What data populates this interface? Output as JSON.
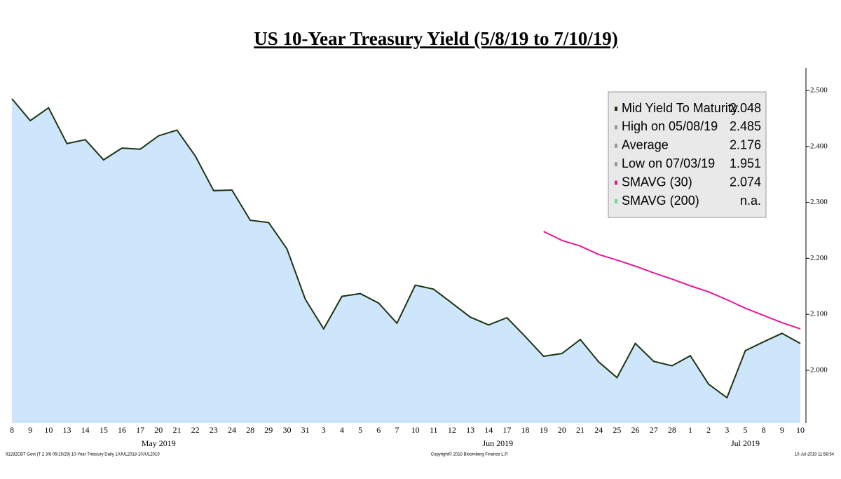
{
  "chart_data": {
    "type": "line",
    "title": "US 10-Year Treasury Yield (5/8/19 to 7/10/19)",
    "categories": [
      "8",
      "9",
      "10",
      "13",
      "14",
      "15",
      "16",
      "17",
      "20",
      "21",
      "22",
      "23",
      "24",
      "28",
      "29",
      "30",
      "31",
      "3",
      "4",
      "5",
      "6",
      "7",
      "10",
      "11",
      "12",
      "13",
      "14",
      "17",
      "18",
      "19",
      "20",
      "21",
      "24",
      "25",
      "26",
      "27",
      "28",
      "1",
      "2",
      "3",
      "5",
      "8",
      "9",
      "10"
    ],
    "month_labels": [
      "May 2019",
      "Jun 2019",
      "Jul 2019"
    ],
    "series": [
      {
        "color": "#1e3311",
        "fill": "#cde6fb",
        "values": [
          2.485,
          2.446,
          2.469,
          2.405,
          2.412,
          2.376,
          2.397,
          2.395,
          2.419,
          2.429,
          2.383,
          2.321,
          2.322,
          2.268,
          2.264,
          2.217,
          2.127,
          2.074,
          2.132,
          2.137,
          2.12,
          2.084,
          2.152,
          2.145,
          2.12,
          2.095,
          2.081,
          2.094,
          2.06,
          2.025,
          2.03,
          2.055,
          2.015,
          1.987,
          2.048,
          2.016,
          2.008,
          2.026,
          1.975,
          1.951,
          2.035,
          2.051,
          2.066,
          2.048
        ]
      },
      {
        "color": "#e8189c",
        "values": [
          null,
          null,
          null,
          null,
          null,
          null,
          null,
          null,
          null,
          null,
          null,
          null,
          null,
          null,
          null,
          null,
          null,
          null,
          null,
          null,
          null,
          null,
          null,
          null,
          null,
          null,
          null,
          null,
          null,
          2.248,
          2.232,
          2.222,
          2.207,
          2.197,
          2.186,
          2.174,
          2.163,
          2.151,
          2.14,
          2.126,
          2.111,
          2.098,
          2.085,
          2.074
        ]
      }
    ],
    "ylim": [
      1.906,
      2.54
    ],
    "yticks": [
      {
        "value": 2.0,
        "label": "2.000"
      },
      {
        "value": 2.1,
        "label": "2.100"
      },
      {
        "value": 2.2,
        "label": "2.200"
      },
      {
        "value": 2.3,
        "label": "2.300"
      },
      {
        "value": 2.4,
        "label": "2.400"
      },
      {
        "value": 2.5,
        "label": "2.500"
      }
    ],
    "legend": [
      {
        "label": "Mid Yield To Maturity",
        "value": 2.048,
        "color": "#1e3311"
      },
      {
        "label": "High on 05/08/19",
        "value": 2.485,
        "color": "#999999"
      },
      {
        "label": "Average",
        "value": 2.176,
        "color": "#999999"
      },
      {
        "label": "Low on 07/03/19",
        "value": 1.951,
        "color": "#999999"
      },
      {
        "label": "SMAVG (30)",
        "value": 2.074,
        "color": "#e8189c"
      },
      {
        "label": "SMAVG (200)",
        "value": "n.a.",
        "color": "#66dd88"
      }
    ],
    "footer": {
      "left": "91282CBT Govt (T 2 3/8 05/15/29) 10-Year Treasury  Daily 10JUL2018-10JUL2019",
      "center": "Copyright© 2019 Bloomberg Finance L.P.",
      "right": "10-Jul-2019 11:58:54"
    }
  }
}
